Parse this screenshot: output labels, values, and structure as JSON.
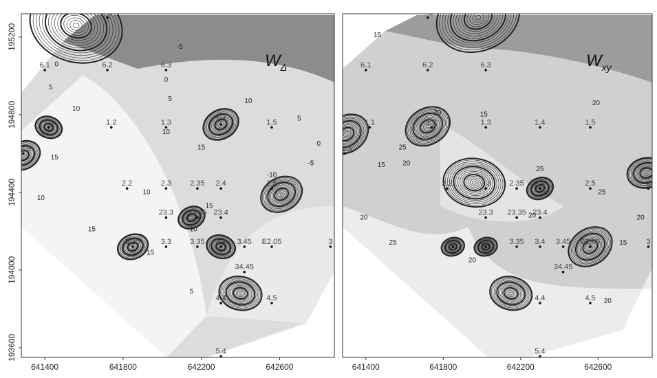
{
  "chart_data": [
    {
      "type": "contour",
      "title": "W",
      "title_subscript": "Δ",
      "x_ticks": [
        "641400",
        "641800",
        "642200",
        "642600"
      ],
      "y_ticks": [
        "195200",
        "194800",
        "194400",
        "194000",
        "193600"
      ],
      "xlim": [
        641280,
        642880
      ],
      "ylim": [
        193550,
        195320
      ],
      "grid": false,
      "stations": [
        {
          "label": "7.2",
          "x": 641720,
          "y": 195300
        },
        {
          "label": "6.1",
          "x": 641400,
          "y": 195030
        },
        {
          "label": "6.2",
          "x": 641720,
          "y": 195030
        },
        {
          "label": "6.3",
          "x": 642020,
          "y": 195030
        },
        {
          "label": "1.1",
          "x": 641420,
          "y": 194735
        },
        {
          "label": "1.2",
          "x": 641740,
          "y": 194735
        },
        {
          "label": "1.3",
          "x": 642020,
          "y": 194735
        },
        {
          "label": "1.4",
          "x": 642300,
          "y": 194750
        },
        {
          "label": "1.5",
          "x": 642560,
          "y": 194735
        },
        {
          "label": "E2.5",
          "x": 641290,
          "y": 194600
        },
        {
          "label": "2.2",
          "x": 641820,
          "y": 194420
        },
        {
          "label": "2.3",
          "x": 642020,
          "y": 194420
        },
        {
          "label": "2.35",
          "x": 642180,
          "y": 194420
        },
        {
          "label": "2.4",
          "x": 642300,
          "y": 194420
        },
        {
          "label": "2.5",
          "x": 642560,
          "y": 194420
        },
        {
          "label": "23.3",
          "x": 642020,
          "y": 194270
        },
        {
          "label": "23.35",
          "x": 642180,
          "y": 194270
        },
        {
          "label": "23.4",
          "x": 642300,
          "y": 194270
        },
        {
          "label": "3.25",
          "x": 641850,
          "y": 194120
        },
        {
          "label": "3.3",
          "x": 642020,
          "y": 194120
        },
        {
          "label": "3.35",
          "x": 642180,
          "y": 194120
        },
        {
          "label": "3.4",
          "x": 642300,
          "y": 194120
        },
        {
          "label": "3.45",
          "x": 642420,
          "y": 194120
        },
        {
          "label": "E2.05",
          "x": 642560,
          "y": 194120
        },
        {
          "label": "3",
          "x": 642860,
          "y": 194120
        },
        {
          "label": "34.45",
          "x": 642420,
          "y": 193990
        },
        {
          "label": "4.4",
          "x": 642300,
          "y": 193830
        },
        {
          "label": "4.5",
          "x": 642560,
          "y": 193830
        },
        {
          "label": "5.4",
          "x": 642300,
          "y": 193555
        }
      ],
      "extrema": [
        {
          "x": 641290,
          "y": 194590,
          "a": -28,
          "r": 90
        },
        {
          "x": 641420,
          "y": 194735,
          "a": 20,
          "r": 70
        },
        {
          "x": 641560,
          "y": 195260,
          "a": 18,
          "r": 240
        },
        {
          "x": 642300,
          "y": 194750,
          "a": -30,
          "r": 95
        },
        {
          "x": 642610,
          "y": 194390,
          "a": -28,
          "r": 110
        },
        {
          "x": 641850,
          "y": 194120,
          "a": -22,
          "r": 80
        },
        {
          "x": 642150,
          "y": 194270,
          "a": -24,
          "r": 70
        },
        {
          "x": 642300,
          "y": 194120,
          "a": 18,
          "r": 75
        },
        {
          "x": 642400,
          "y": 193880,
          "a": 12,
          "r": 110
        }
      ],
      "contour_labels": [
        {
          "text": "-5",
          "x": 642090,
          "y": 195140
        },
        {
          "text": "0",
          "x": 641460,
          "y": 195050
        },
        {
          "text": "5",
          "x": 641430,
          "y": 194930
        },
        {
          "text": "10",
          "x": 641560,
          "y": 194820
        },
        {
          "text": "0",
          "x": 642020,
          "y": 194970
        },
        {
          "text": "5",
          "x": 642040,
          "y": 194870
        },
        {
          "text": "15",
          "x": 641450,
          "y": 194570
        },
        {
          "text": "10",
          "x": 641380,
          "y": 194360
        },
        {
          "text": "15",
          "x": 641640,
          "y": 194200
        },
        {
          "text": "10",
          "x": 641920,
          "y": 194390
        },
        {
          "text": "15",
          "x": 641940,
          "y": 194080
        },
        {
          "text": "10",
          "x": 642020,
          "y": 194700
        },
        {
          "text": "15",
          "x": 642200,
          "y": 194620
        },
        {
          "text": "10",
          "x": 642440,
          "y": 194860
        },
        {
          "text": "5",
          "x": 642700,
          "y": 194770
        },
        {
          "text": "0",
          "x": 642800,
          "y": 194640
        },
        {
          "text": "-5",
          "x": 642760,
          "y": 194540
        },
        {
          "text": "-10",
          "x": 642560,
          "y": 194480
        },
        {
          "text": "15",
          "x": 642240,
          "y": 194320
        },
        {
          "text": "10",
          "x": 642160,
          "y": 194200
        },
        {
          "text": "5",
          "x": 642150,
          "y": 193880
        }
      ]
    },
    {
      "type": "contour",
      "title": "W",
      "title_subscript": "xy",
      "x_ticks": [
        "641400",
        "641800",
        "642200",
        "642600"
      ],
      "y_ticks": [],
      "xlim": [
        641280,
        642880
      ],
      "ylim": [
        193550,
        195320
      ],
      "grid": false,
      "stations": [
        {
          "label": "7.2",
          "x": 641720,
          "y": 195300
        },
        {
          "label": "6.1",
          "x": 641400,
          "y": 195030
        },
        {
          "label": "6.2",
          "x": 641720,
          "y": 195030
        },
        {
          "label": "6.3",
          "x": 642020,
          "y": 195030
        },
        {
          "label": "1.1",
          "x": 641420,
          "y": 194735
        },
        {
          "label": "1.2",
          "x": 641740,
          "y": 194735
        },
        {
          "label": "1.3",
          "x": 642020,
          "y": 194735
        },
        {
          "label": "1.4",
          "x": 642300,
          "y": 194735
        },
        {
          "label": "1.5",
          "x": 642560,
          "y": 194735
        },
        {
          "label": "E2.5",
          "x": 641290,
          "y": 194600
        },
        {
          "label": "2.2",
          "x": 641820,
          "y": 194420
        },
        {
          "label": "2.3",
          "x": 642020,
          "y": 194420
        },
        {
          "label": "2.35",
          "x": 642180,
          "y": 194420
        },
        {
          "label": "2.4",
          "x": 642300,
          "y": 194420
        },
        {
          "label": "2.5",
          "x": 642560,
          "y": 194420
        },
        {
          "label": "2",
          "x": 642860,
          "y": 194420
        },
        {
          "label": "23.3",
          "x": 642020,
          "y": 194270
        },
        {
          "label": "23.35",
          "x": 642180,
          "y": 194270
        },
        {
          "label": "23.4",
          "x": 642300,
          "y": 194270
        },
        {
          "label": "3.25",
          "x": 641850,
          "y": 194120
        },
        {
          "label": "3.3",
          "x": 642020,
          "y": 194120
        },
        {
          "label": "3.35",
          "x": 642180,
          "y": 194120
        },
        {
          "label": "3.4",
          "x": 642300,
          "y": 194120
        },
        {
          "label": "3.45",
          "x": 642420,
          "y": 194120
        },
        {
          "label": "E2.05",
          "x": 642560,
          "y": 194120
        },
        {
          "label": "3",
          "x": 642860,
          "y": 194120
        },
        {
          "label": "34.45",
          "x": 642420,
          "y": 193990
        },
        {
          "label": "4.4",
          "x": 642300,
          "y": 193830
        },
        {
          "label": "4.5",
          "x": 642560,
          "y": 193830
        },
        {
          "label": "5.4",
          "x": 642300,
          "y": 193555
        }
      ],
      "extrema": [
        {
          "x": 641300,
          "y": 194700,
          "a": -34,
          "r": 120
        },
        {
          "x": 641720,
          "y": 194740,
          "a": -30,
          "r": 120
        },
        {
          "x": 641980,
          "y": 195300,
          "a": -22,
          "r": 220
        },
        {
          "x": 642560,
          "y": 194120,
          "a": -34,
          "r": 120
        },
        {
          "x": 642300,
          "y": 194420,
          "a": -22,
          "r": 70
        },
        {
          "x": 641850,
          "y": 194120,
          "a": -16,
          "r": 60
        },
        {
          "x": 642020,
          "y": 194120,
          "a": -16,
          "r": 60
        },
        {
          "x": 642150,
          "y": 193880,
          "a": 14,
          "r": 110
        },
        {
          "x": 641960,
          "y": 194450,
          "a": 8,
          "r": 160
        },
        {
          "x": 642850,
          "y": 194500,
          "a": -10,
          "r": 100
        }
      ],
      "contour_labels": [
        {
          "text": "15",
          "x": 641460,
          "y": 195200
        },
        {
          "text": "20",
          "x": 641770,
          "y": 194800
        },
        {
          "text": "15",
          "x": 642010,
          "y": 194790
        },
        {
          "text": "20",
          "x": 642590,
          "y": 194850
        },
        {
          "text": "25",
          "x": 641590,
          "y": 194620
        },
        {
          "text": "15",
          "x": 641480,
          "y": 194530
        },
        {
          "text": "20",
          "x": 641610,
          "y": 194540
        },
        {
          "text": "25",
          "x": 642300,
          "y": 194510
        },
        {
          "text": "25",
          "x": 642620,
          "y": 194390
        },
        {
          "text": "20",
          "x": 641390,
          "y": 194260
        },
        {
          "text": "20",
          "x": 642260,
          "y": 194270
        },
        {
          "text": "25",
          "x": 641540,
          "y": 194130
        },
        {
          "text": "20",
          "x": 641950,
          "y": 194040
        },
        {
          "text": "20",
          "x": 642820,
          "y": 194260
        },
        {
          "text": "15",
          "x": 642730,
          "y": 194130
        },
        {
          "text": "20",
          "x": 642650,
          "y": 193830
        }
      ]
    }
  ]
}
